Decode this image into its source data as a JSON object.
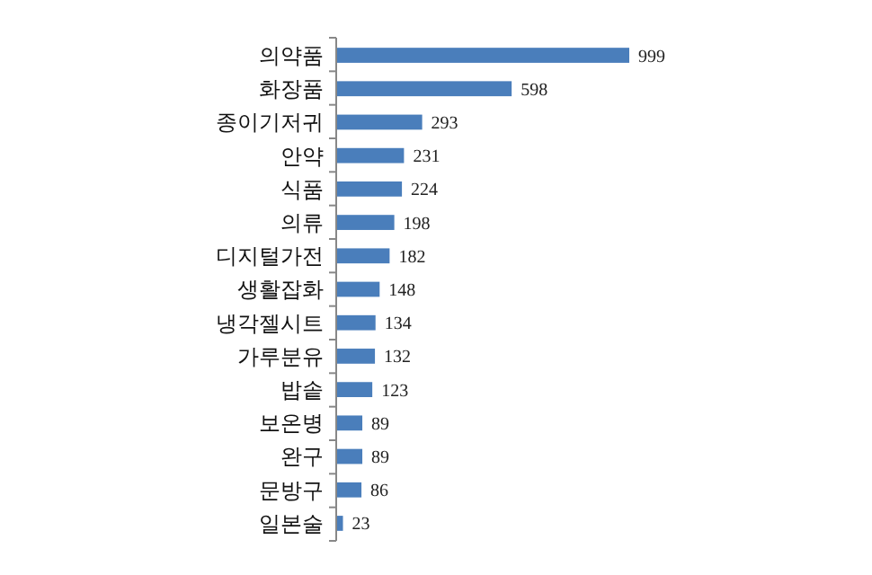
{
  "chart_data": {
    "type": "bar",
    "orientation": "horizontal",
    "categories": [
      "의약품",
      "화장품",
      "종이기저귀",
      "안약",
      "식품",
      "의류",
      "디지털가전",
      "생활잡화",
      "냉각젤시트",
      "가루분유",
      "밥솥",
      "보온병",
      "완구",
      "문방구",
      "일본술"
    ],
    "values": [
      999,
      598,
      293,
      231,
      224,
      198,
      182,
      148,
      134,
      132,
      123,
      89,
      89,
      86,
      23
    ],
    "color": "#4a7ebb",
    "data_labels": true
  }
}
